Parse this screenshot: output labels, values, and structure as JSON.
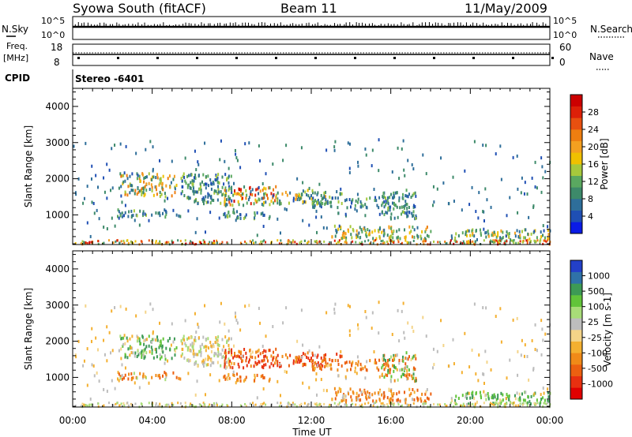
{
  "header": {
    "station": "Syowa South (fitACF)",
    "beam": "Beam 11",
    "date": "11/May/2009"
  },
  "status_panels": {
    "nsky": {
      "label": "N.Sky",
      "ticks": [
        "10^5",
        "10^0"
      ]
    },
    "nsearch": {
      "label": "N.Search",
      "ticks": [
        "10^5",
        "10^0"
      ]
    },
    "freq": {
      "label_line1": "Freq.",
      "label_line2": "[MHz]",
      "ticks": [
        "18",
        "8"
      ]
    },
    "nave": {
      "label": "Nave",
      "ticks": [
        "60",
        "0"
      ]
    },
    "cpid": {
      "label": "CPID",
      "value": "Stereo -6401"
    }
  },
  "colors": {
    "power_bar": [
      "#0a1be6",
      "#1f4fb4",
      "#2e6e9a",
      "#3d8a6a",
      "#5aa860",
      "#a6c83c",
      "#f0c000",
      "#f4a020",
      "#ee7e10",
      "#e85010",
      "#dd2008",
      "#cc0000"
    ],
    "velocity_bar": [
      "#e00000",
      "#e83010",
      "#ec6010",
      "#f08a18",
      "#f4b030",
      "#f4d488",
      "#bdbdbd",
      "#a8dc78",
      "#62c43a",
      "#3d9a55",
      "#2f72a8",
      "#2340c8"
    ]
  },
  "chart_data": [
    {
      "type": "heatmap",
      "name": "power",
      "ylabel": "Slant Range [km]",
      "ylim": [
        180,
        4500
      ],
      "y_ticks": [
        "1000",
        "2000",
        "3000",
        "4000"
      ],
      "x_ticks": [
        "00:00",
        "04:00",
        "08:00",
        "12:00",
        "16:00",
        "20:00",
        "00:00"
      ],
      "colorbar": {
        "label": "Power [dB]",
        "range": [
          0,
          32
        ],
        "ticks": [
          "4",
          "8",
          "12",
          "16",
          "20",
          "24",
          "28"
        ]
      },
      "patches": [
        {
          "t0": 2.3,
          "t1": 5.2,
          "r0": 1500,
          "r1": 2150,
          "v0": 6,
          "v1": 24
        },
        {
          "t0": 2.2,
          "t1": 5.5,
          "r0": 950,
          "r1": 1150,
          "v0": 4,
          "v1": 14
        },
        {
          "t0": 5.4,
          "t1": 8.0,
          "r0": 1300,
          "r1": 2150,
          "v0": 4,
          "v1": 16
        },
        {
          "t0": 7.6,
          "t1": 10.2,
          "r0": 1250,
          "r1": 1800,
          "v0": 6,
          "v1": 30
        },
        {
          "t0": 7.2,
          "t1": 10.0,
          "r0": 900,
          "r1": 1100,
          "v0": 4,
          "v1": 14
        },
        {
          "t0": 10.0,
          "t1": 13.5,
          "r0": 1300,
          "r1": 1700,
          "v0": 4,
          "v1": 20
        },
        {
          "t0": 12.0,
          "t1": 16.0,
          "r0": 1200,
          "r1": 1500,
          "v0": 4,
          "v1": 14
        },
        {
          "t0": 15.5,
          "t1": 17.3,
          "r0": 900,
          "r1": 1700,
          "v0": 4,
          "v1": 14
        },
        {
          "t0": 13.0,
          "t1": 18.0,
          "r0": 300,
          "r1": 700,
          "v0": 6,
          "v1": 22
        },
        {
          "t0": 19.0,
          "t1": 24.0,
          "r0": 250,
          "r1": 600,
          "v0": 4,
          "v1": 20
        },
        {
          "t0": 0.0,
          "t1": 24.0,
          "r0": 180,
          "r1": 300,
          "v0": 8,
          "v1": 30
        },
        {
          "t0": 0.0,
          "t1": 24.0,
          "r0": 400,
          "r1": 3100,
          "v0": 4,
          "v1": 10
        }
      ]
    },
    {
      "type": "heatmap",
      "name": "velocity",
      "ylabel": "Slant Range [km]",
      "ylim": [
        180,
        4500
      ],
      "y_ticks": [
        "1000",
        "2000",
        "3000",
        "4000"
      ],
      "x_ticks": [
        "00:00",
        "04:00",
        "08:00",
        "12:00",
        "16:00",
        "20:00",
        "00:00"
      ],
      "xlabel": "Time UT",
      "colorbar": {
        "label": "Velocity [m s-1]",
        "levels": [
          -1000,
          -500,
          -100,
          -25,
          25,
          100,
          500,
          1000
        ],
        "ticks": [
          "1000",
          "500",
          "100",
          "25",
          "-25",
          "-100",
          "-500",
          "-1000"
        ]
      },
      "patches": [
        {
          "t0": 2.3,
          "t1": 5.2,
          "r0": 1500,
          "r1": 2150,
          "v0": -100,
          "v1": 500
        },
        {
          "t0": 2.2,
          "t1": 5.5,
          "r0": 950,
          "r1": 1150,
          "v0": -500,
          "v1": 100
        },
        {
          "t0": 5.4,
          "t1": 8.0,
          "r0": 1300,
          "r1": 2150,
          "v0": -100,
          "v1": 100
        },
        {
          "t0": 7.6,
          "t1": 10.2,
          "r0": 1250,
          "r1": 1800,
          "v0": -1000,
          "v1": -100
        },
        {
          "t0": 7.2,
          "t1": 10.0,
          "r0": 900,
          "r1": 1100,
          "v0": -500,
          "v1": -25
        },
        {
          "t0": 10.0,
          "t1": 13.5,
          "r0": 1300,
          "r1": 1700,
          "v0": -1000,
          "v1": -100
        },
        {
          "t0": 12.0,
          "t1": 16.0,
          "r0": 1200,
          "r1": 1500,
          "v0": -500,
          "v1": 25
        },
        {
          "t0": 15.5,
          "t1": 17.3,
          "r0": 900,
          "r1": 1700,
          "v0": -500,
          "v1": 500
        },
        {
          "t0": 13.0,
          "t1": 18.0,
          "r0": 300,
          "r1": 700,
          "v0": -500,
          "v1": 25
        },
        {
          "t0": 19.0,
          "t1": 24.0,
          "r0": 250,
          "r1": 600,
          "v0": -100,
          "v1": 500
        },
        {
          "t0": 0.0,
          "t1": 24.0,
          "r0": 180,
          "r1": 300,
          "v0": -100,
          "v1": 100
        },
        {
          "t0": 0.0,
          "t1": 24.0,
          "r0": 400,
          "r1": 3100,
          "v0": -100,
          "v1": 25
        }
      ]
    }
  ]
}
